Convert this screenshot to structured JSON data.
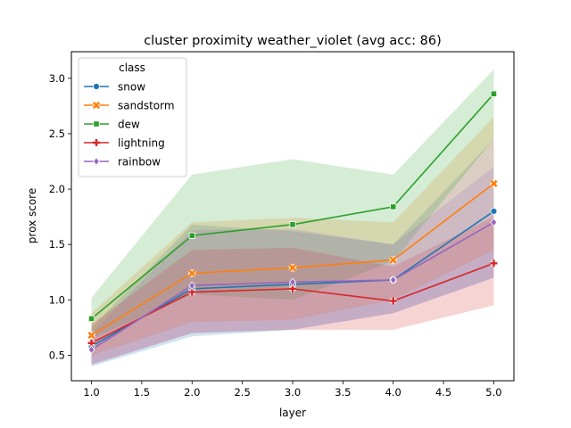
{
  "chart_data": {
    "type": "line",
    "title": "cluster proximity weather_violet (avg acc: 86)",
    "xlabel": "layer",
    "ylabel": "prox score",
    "xlim": [
      0.8,
      5.2
    ],
    "ylim": [
      0.27,
      3.24
    ],
    "xticks": [
      "1.0",
      "1.5",
      "2.0",
      "2.5",
      "3.0",
      "3.5",
      "4.0",
      "4.5",
      "5.0"
    ],
    "yticks": [
      "0.5",
      "1.0",
      "1.5",
      "2.0",
      "2.5",
      "3.0"
    ],
    "x": [
      1,
      2,
      3,
      4,
      5
    ],
    "legend": {
      "title": "class",
      "placement": "upper left"
    },
    "series": [
      {
        "name": "snow",
        "color": "#1f77b4",
        "marker": "circle",
        "values": [
          0.58,
          1.1,
          1.14,
          1.18,
          1.8
        ],
        "lower": [
          0.4,
          0.67,
          0.73,
          0.88,
          1.2
        ],
        "upper": [
          0.75,
          1.68,
          1.62,
          1.5,
          2.45
        ]
      },
      {
        "name": "sandstorm",
        "color": "#ff7f0e",
        "marker": "x",
        "values": [
          0.68,
          1.24,
          1.29,
          1.36,
          2.05
        ],
        "lower": [
          0.5,
          0.8,
          0.82,
          1.0,
          1.45
        ],
        "upper": [
          0.88,
          1.7,
          1.74,
          1.7,
          2.65
        ]
      },
      {
        "name": "dew",
        "color": "#2ca02c",
        "marker": "square",
        "values": [
          0.83,
          1.58,
          1.68,
          1.84,
          2.86
        ],
        "lower": [
          0.65,
          1.05,
          1.0,
          1.35,
          2.45
        ],
        "upper": [
          1.02,
          2.13,
          2.27,
          2.13,
          3.08
        ]
      },
      {
        "name": "lightning",
        "color": "#d62728",
        "marker": "plus",
        "values": [
          0.61,
          1.07,
          1.1,
          0.99,
          1.33
        ],
        "lower": [
          0.42,
          0.7,
          0.73,
          0.73,
          0.95
        ],
        "upper": [
          0.78,
          1.45,
          1.47,
          1.3,
          1.75
        ]
      },
      {
        "name": "rainbow",
        "color": "#9467bd",
        "marker": "diamond",
        "values": [
          0.55,
          1.13,
          1.16,
          1.18,
          1.7
        ],
        "lower": [
          0.41,
          0.7,
          0.73,
          0.88,
          1.2
        ],
        "upper": [
          0.7,
          1.63,
          1.64,
          1.5,
          2.2
        ]
      }
    ]
  }
}
